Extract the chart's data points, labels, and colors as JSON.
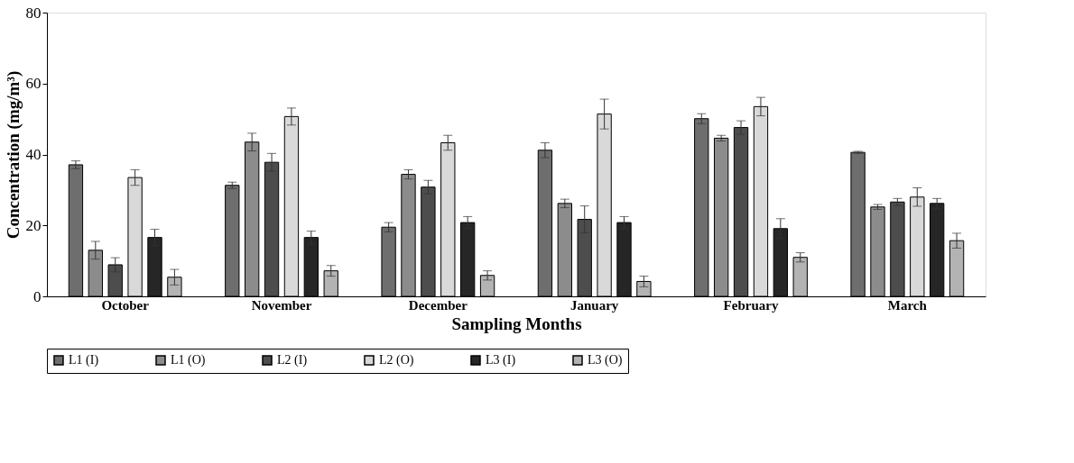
{
  "chart_data": {
    "type": "bar",
    "xlabel": "Sampling Months",
    "ylabel": "Concentration (mg/m³)",
    "categories": [
      "October",
      "November",
      "December",
      "January",
      "February",
      "March"
    ],
    "ylim": [
      0,
      80
    ],
    "yticks": [
      0,
      20,
      40,
      60,
      80
    ],
    "grid": false,
    "legend": "bottom",
    "series": [
      {
        "name": "L1 (I)",
        "color": "#6e6e6e",
        "values": [
          37.1,
          31.3,
          19.5,
          41.2,
          50.1,
          40.6
        ],
        "errors": [
          1.1,
          0.9,
          1.3,
          2.1,
          1.4,
          0.3
        ]
      },
      {
        "name": "L1 (O)",
        "color": "#8c8c8c",
        "values": [
          13.0,
          43.5,
          34.4,
          26.2,
          44.6,
          25.2
        ],
        "errors": [
          2.5,
          2.5,
          1.3,
          1.2,
          0.8,
          0.7
        ]
      },
      {
        "name": "L2 (I)",
        "color": "#4d4d4d",
        "values": [
          8.9,
          37.8,
          30.8,
          21.7,
          47.6,
          26.6
        ],
        "errors": [
          2.0,
          2.5,
          1.9,
          3.8,
          1.9,
          1.0
        ]
      },
      {
        "name": "L2 (O)",
        "color": "#d9d9d9",
        "values": [
          33.5,
          50.7,
          43.3,
          51.4,
          53.5,
          28.0
        ],
        "errors": [
          2.2,
          2.4,
          2.1,
          4.2,
          2.6,
          2.6
        ]
      },
      {
        "name": "L3 (I)",
        "color": "#262626",
        "values": [
          16.6,
          16.6,
          20.8,
          20.8,
          19.1,
          26.2
        ],
        "errors": [
          2.3,
          1.8,
          1.7,
          1.7,
          2.8,
          1.4
        ]
      },
      {
        "name": "L3 (O)",
        "color": "#b3b3b3",
        "values": [
          5.4,
          7.2,
          5.9,
          4.2,
          11.0,
          15.7
        ],
        "errors": [
          2.2,
          1.5,
          1.3,
          1.5,
          1.3,
          2.1
        ]
      }
    ]
  }
}
